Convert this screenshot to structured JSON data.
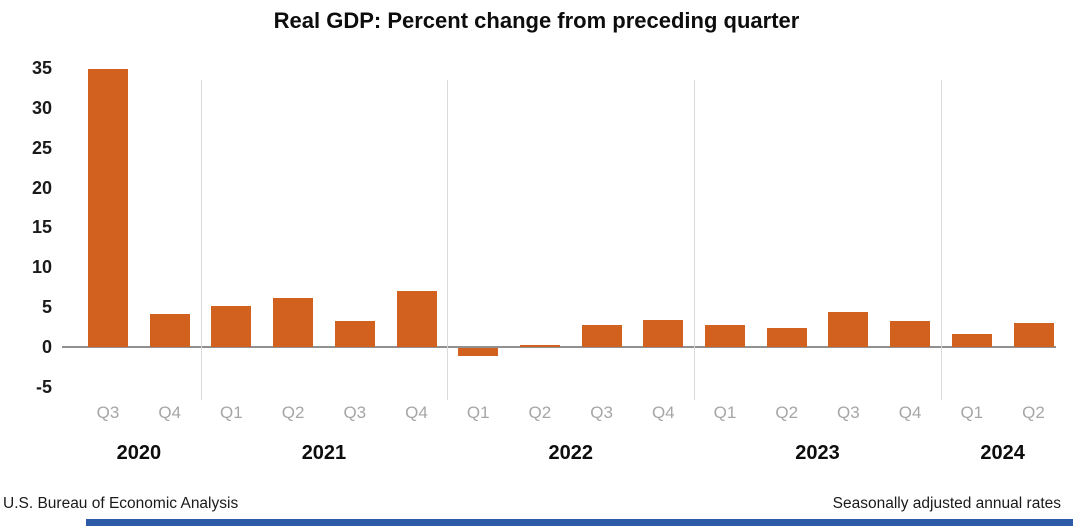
{
  "title": "Real GDP: Percent change from preceding quarter",
  "footer": {
    "left": "U.S. Bureau of Economic Analysis",
    "right": "Seasonally adjusted annual rates"
  },
  "colors": {
    "bar": "#d2601e",
    "accent_bar": "#2d5ba7",
    "zero_line": "#909090",
    "separator": "#dadada",
    "quarter_label": "#a6a6a6",
    "text": "#1a1a1a"
  },
  "chart_data": {
    "type": "bar",
    "title": "Real GDP: Percent change from preceding quarter",
    "xlabel": "",
    "ylabel": "",
    "ylim": [
      -5,
      35
    ],
    "yticks": [
      35,
      30,
      25,
      20,
      15,
      10,
      5,
      0,
      -5
    ],
    "legend": "none",
    "grid": "vertical year separators only",
    "bar_color": "#d2601e",
    "groups": [
      {
        "year": "2020",
        "quarters": [
          "Q3",
          "Q4"
        ],
        "values": [
          34.8,
          4.2
        ]
      },
      {
        "year": "2021",
        "quarters": [
          "Q1",
          "Q2",
          "Q3",
          "Q4"
        ],
        "values": [
          5.2,
          6.2,
          3.3,
          7.0
        ]
      },
      {
        "year": "2022",
        "quarters": [
          "Q1",
          "Q2",
          "Q3",
          "Q4"
        ],
        "values": [
          -1.0,
          0.3,
          2.7,
          3.4
        ]
      },
      {
        "year": "2023",
        "quarters": [
          "Q1",
          "Q2",
          "Q3",
          "Q4"
        ],
        "values": [
          2.8,
          2.4,
          4.4,
          3.2
        ]
      },
      {
        "year": "2024",
        "quarters": [
          "Q1",
          "Q2"
        ],
        "values": [
          1.6,
          3.0
        ]
      }
    ]
  }
}
